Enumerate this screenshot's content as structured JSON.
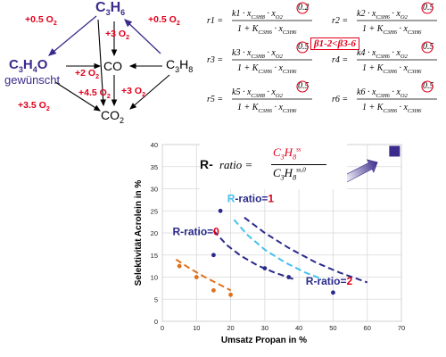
{
  "scheme": {
    "propene": "C3H6",
    "acrolein": "C3H4O",
    "co": "CO",
    "propane": "C3H8",
    "co2": "CO2",
    "desired": "gewünscht",
    "o2_left": "+0.5 O2",
    "o2_right": "+0.5 O2",
    "o2_propene_co": "+3 O2",
    "o2_propene_co2": "+3 O2",
    "o2_acrolein_co": "+2 O2",
    "o2_acrolein_co2": "+3.5 O2",
    "o2_co_co2": "+4.5 O2"
  },
  "kinetics": {
    "rate_names": [
      "r1",
      "r2",
      "r3",
      "r4",
      "r5",
      "r6"
    ],
    "rate_constants": [
      "k1",
      "k2",
      "k3",
      "k4",
      "k5",
      "k6"
    ],
    "o2_orders": [
      "0.2",
      "0.5",
      "0.5",
      "0.5",
      "0.5",
      "0.5"
    ],
    "denominator": "1 + K",
    "beta_note": "β1-2<β3-6"
  },
  "ratio_box": {
    "label_r": "R-",
    "label_ratio": "ratio =",
    "numerator": "C3H8",
    "numerator_sup": "ss",
    "denominator": "C3H8",
    "denominator_sup": "ss,0"
  },
  "chart_data": {
    "type": "scatter",
    "xlabel": "Umsatz Propan in %",
    "ylabel": "Selektivität Acrolein in %",
    "xlim": [
      0,
      70
    ],
    "ylim": [
      0,
      40
    ],
    "x_ticks": [
      0,
      10,
      20,
      30,
      40,
      50,
      60,
      70
    ],
    "y_ticks": [
      0,
      5,
      10,
      15,
      20,
      25,
      30,
      35,
      40
    ],
    "grid": true,
    "series": [
      {
        "name": "R-ratio=0",
        "color": "#e0701a",
        "points": [
          [
            5,
            12.5
          ],
          [
            10,
            10
          ],
          [
            15,
            7
          ],
          [
            20,
            6
          ]
        ],
        "trend": [
          [
            4,
            14
          ],
          [
            8,
            12
          ],
          [
            12,
            10.2
          ],
          [
            16,
            8.6
          ],
          [
            20,
            7
          ]
        ]
      },
      {
        "name": "R-ratio=1",
        "color": "#2b2a8a",
        "points": [
          [
            15,
            15
          ],
          [
            17,
            25
          ],
          [
            30,
            12
          ],
          [
            37,
            10
          ]
        ],
        "trend": [
          [
            15,
            20.5
          ],
          [
            19,
            17.2
          ],
          [
            23,
            14.8
          ],
          [
            28,
            12.6
          ],
          [
            33,
            11
          ],
          [
            39,
            9.4
          ]
        ]
      },
      {
        "name": "R-ratio=1 (trend)",
        "color": "#47c0ee",
        "points": [],
        "trend": [
          [
            21,
            23
          ],
          [
            25,
            19.5
          ],
          [
            30,
            16.2
          ],
          [
            36,
            13.3
          ],
          [
            42,
            11
          ],
          [
            47,
            9.5
          ]
        ]
      },
      {
        "name": "R-ratio=2",
        "color": "#2b2a8a",
        "points": [
          [
            50,
            6.5
          ]
        ],
        "trend": [
          [
            24,
            23.5
          ],
          [
            30,
            20
          ],
          [
            37,
            16.6
          ],
          [
            45,
            13.3
          ],
          [
            52,
            11
          ],
          [
            60,
            8.8
          ]
        ]
      }
    ],
    "annotations": [
      {
        "text_r": "R",
        "text_rest": "-ratio=",
        "value": "0"
      },
      {
        "text_r": "R",
        "text_rest": "-ratio=",
        "value": "1"
      },
      {
        "text_r": "R",
        "text_rest": "-ratio=",
        "value": "2"
      }
    ],
    "marker_square": [
      68,
      38.5
    ],
    "arrow_from": [
      53,
      32
    ],
    "arrow_to": [
      63,
      36
    ]
  }
}
